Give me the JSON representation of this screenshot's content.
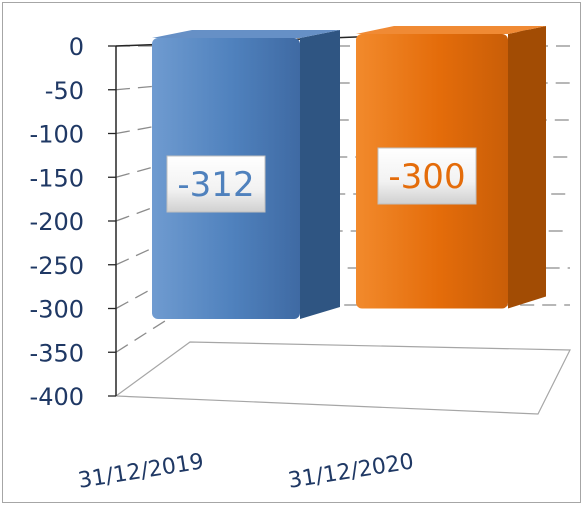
{
  "chart_data": {
    "type": "bar",
    "categories": [
      "31/12/2019",
      "31/12/2020"
    ],
    "values": [
      -312,
      -300
    ],
    "data_labels": [
      "-312",
      "-300"
    ],
    "yticks": [
      "0",
      "-50",
      "-100",
      "-150",
      "-200",
      "-250",
      "-300",
      "-350",
      "-400"
    ],
    "ylim": [
      -400,
      0
    ],
    "grid": true,
    "legend": "none",
    "bar_colors": [
      "#4f81bd",
      "#e46c0a"
    ],
    "label_colors": [
      "#4f81bd",
      "#e46c0a"
    ],
    "tick_color": "#1f3864"
  }
}
